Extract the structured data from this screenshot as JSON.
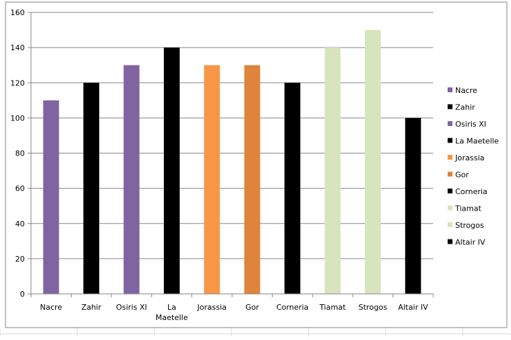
{
  "chart_data": {
    "type": "bar",
    "title": "",
    "xlabel": "",
    "ylabel": "",
    "ylim": [
      0,
      160
    ],
    "yticks": [
      0,
      20,
      40,
      60,
      80,
      100,
      120,
      140,
      160
    ],
    "grid": true,
    "legend_position": "right",
    "categories": [
      "Nacre",
      "Zahir",
      "Osiris XI",
      "La Maetelle",
      "Jorassia",
      "Gor",
      "Corneria",
      "Tiamat",
      "Strogos",
      "Altair IV"
    ],
    "category_tick_lines": [
      [
        "Nacre"
      ],
      [
        "Zahir"
      ],
      [
        "Osiris XI"
      ],
      [
        "La",
        "Maetelle"
      ],
      [
        "Jorassia"
      ],
      [
        "Gor"
      ],
      [
        "Corneria"
      ],
      [
        "Tiamat"
      ],
      [
        "Strogos"
      ],
      [
        "Altair IV"
      ]
    ],
    "values": [
      110,
      120,
      130,
      140,
      130,
      130,
      120,
      140,
      150,
      100
    ],
    "colors": [
      "#8064a2",
      "#000000",
      "#8064a2",
      "#000000",
      "#f79646",
      "#e0833b",
      "#000000",
      "#d7e4bd",
      "#d7e4bd",
      "#000000"
    ],
    "legend": [
      {
        "label": "Nacre",
        "color": "#8064a2"
      },
      {
        "label": "Zahir",
        "color": "#000000"
      },
      {
        "label": "Osiris XI",
        "color": "#8064a2"
      },
      {
        "label": "La Maetelle",
        "color": "#000000"
      },
      {
        "label": "Jorassia",
        "color": "#f79646"
      },
      {
        "label": "Gor",
        "color": "#e0833b"
      },
      {
        "label": "Corneria",
        "color": "#000000"
      },
      {
        "label": "Tiamat",
        "color": "#d7e4bd"
      },
      {
        "label": "Strogos",
        "color": "#d7e4bd"
      },
      {
        "label": "Altair IV",
        "color": "#000000"
      }
    ]
  }
}
